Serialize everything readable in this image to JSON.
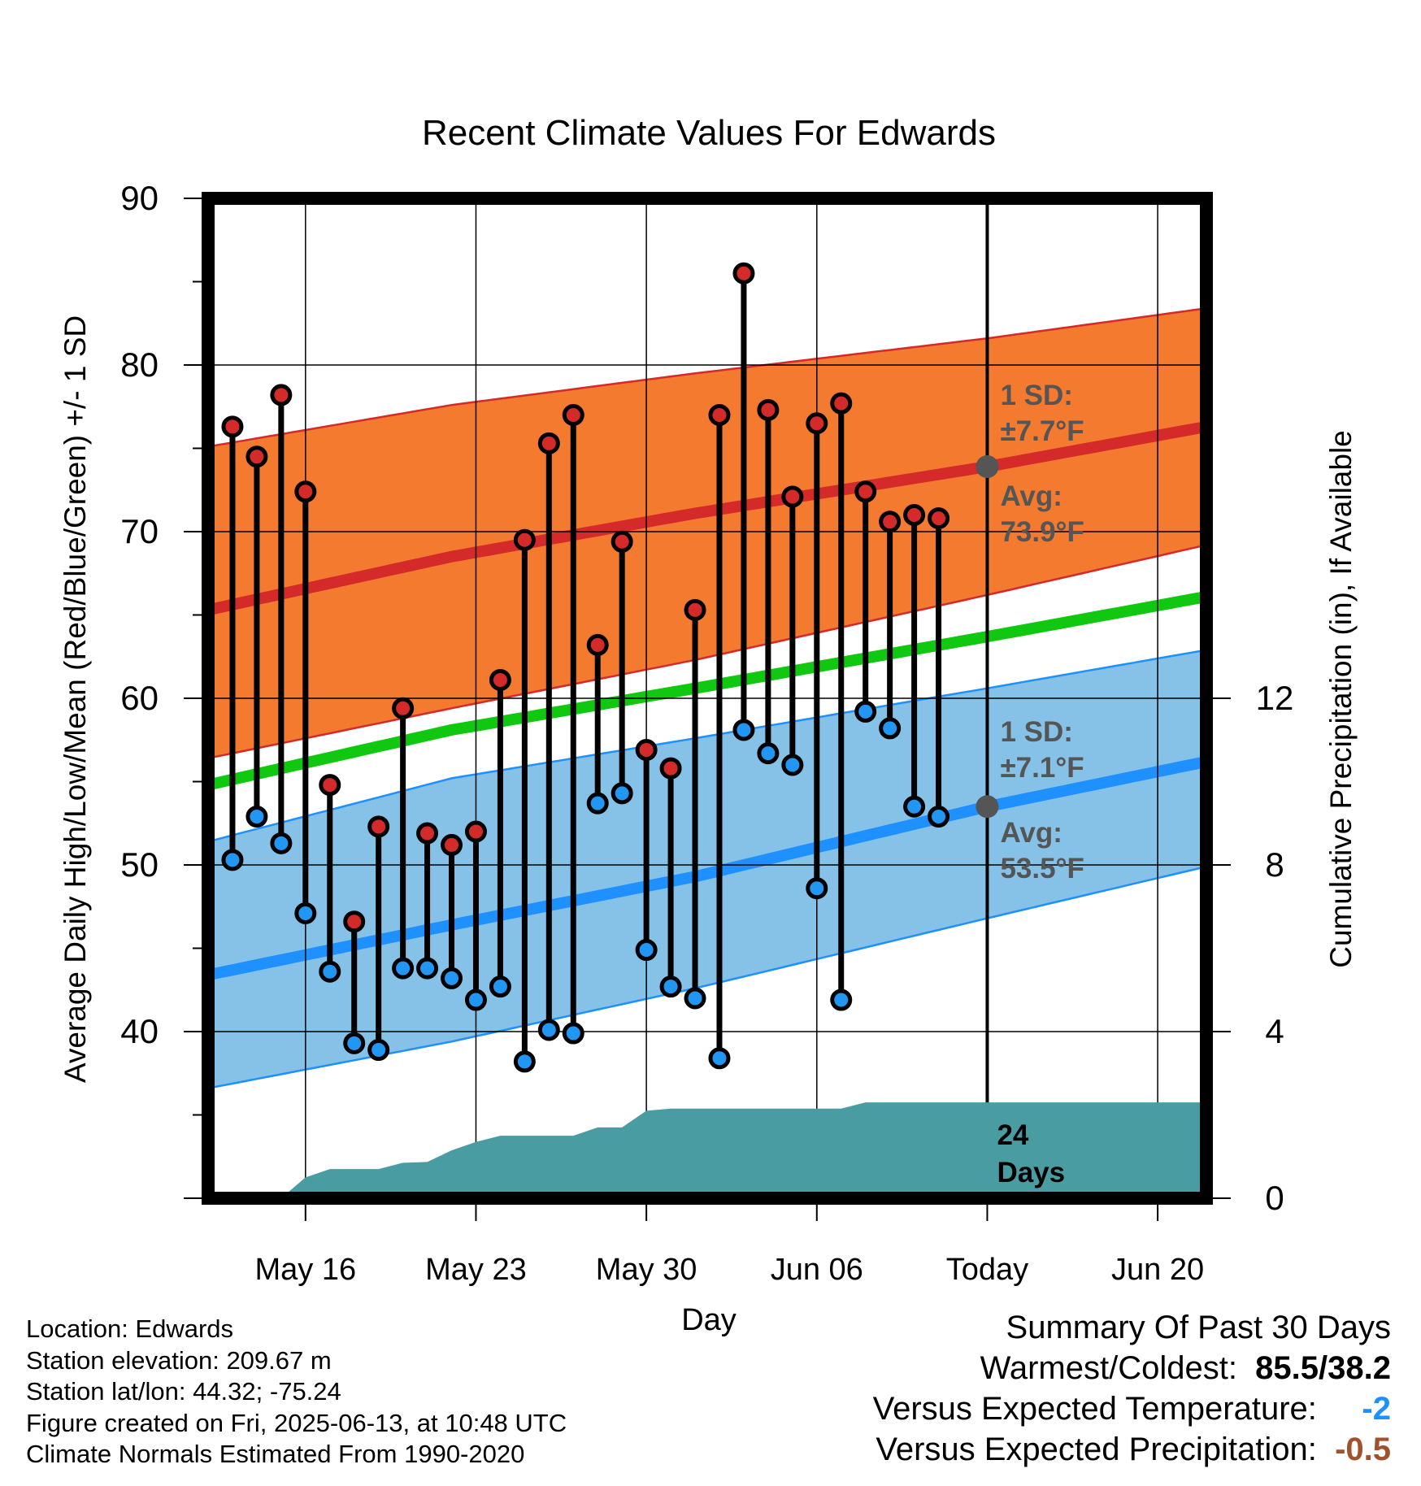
{
  "chart_data": {
    "type": "line",
    "title": "Recent Climate Values For Edwards",
    "xlabel": "Day",
    "ylabel_left": "Average Daily High/Low/Mean (Red/Blue/Green) +/- 1 SD",
    "ylabel_right": "Cumulative Precipitation (in), If Available",
    "ylim_left": [
      30,
      90
    ],
    "ylim_right": [
      0,
      24
    ],
    "yticks_left": [
      40,
      50,
      60,
      70,
      80,
      90
    ],
    "yticks_right": [
      0,
      4,
      8,
      12
    ],
    "x_domain": [
      "2025-05-12",
      "2025-06-22"
    ],
    "xticks": [
      {
        "date": "2025-05-16",
        "label": "May 16"
      },
      {
        "date": "2025-05-23",
        "label": "May 23"
      },
      {
        "date": "2025-05-30",
        "label": "May 30"
      },
      {
        "date": "2025-06-06",
        "label": "Jun 06"
      },
      {
        "date": "2025-06-13",
        "label": "Today"
      },
      {
        "date": "2025-06-20",
        "label": "Jun 20"
      }
    ],
    "today": "2025-06-13",
    "grid": true,
    "daily_obs": [
      {
        "date": "2025-05-13",
        "high": 76.3,
        "low": 50.3
      },
      {
        "date": "2025-05-14",
        "high": 74.5,
        "low": 52.9
      },
      {
        "date": "2025-05-15",
        "high": 78.2,
        "low": 51.3
      },
      {
        "date": "2025-05-16",
        "high": 72.4,
        "low": 47.1
      },
      {
        "date": "2025-05-17",
        "high": 54.8,
        "low": 43.6
      },
      {
        "date": "2025-05-18",
        "high": 46.6,
        "low": 39.3
      },
      {
        "date": "2025-05-19",
        "high": 52.3,
        "low": 38.9
      },
      {
        "date": "2025-05-20",
        "high": 59.4,
        "low": 43.8
      },
      {
        "date": "2025-05-21",
        "high": 51.9,
        "low": 43.8
      },
      {
        "date": "2025-05-22",
        "high": 51.2,
        "low": 43.2
      },
      {
        "date": "2025-05-23",
        "high": 52.0,
        "low": 41.9
      },
      {
        "date": "2025-05-24",
        "high": 61.1,
        "low": 42.7
      },
      {
        "date": "2025-05-25",
        "high": 69.5,
        "low": 38.2
      },
      {
        "date": "2025-05-26",
        "high": 75.3,
        "low": 40.1
      },
      {
        "date": "2025-05-27",
        "high": 77.0,
        "low": 39.9
      },
      {
        "date": "2025-05-28",
        "high": 63.2,
        "low": 53.7
      },
      {
        "date": "2025-05-29",
        "high": 69.4,
        "low": 54.3
      },
      {
        "date": "2025-05-30",
        "high": 56.9,
        "low": 44.9
      },
      {
        "date": "2025-05-31",
        "high": 55.8,
        "low": 42.7
      },
      {
        "date": "2025-06-01",
        "high": 65.3,
        "low": 42.0
      },
      {
        "date": "2025-06-02",
        "high": 77.0,
        "low": 38.4
      },
      {
        "date": "2025-06-03",
        "high": 85.5,
        "low": 58.1
      },
      {
        "date": "2025-06-04",
        "high": 77.3,
        "low": 56.7
      },
      {
        "date": "2025-06-05",
        "high": 72.1,
        "low": 56.0
      },
      {
        "date": "2025-06-06",
        "high": 76.5,
        "low": 48.6
      },
      {
        "date": "2025-06-07",
        "high": 77.7,
        "low": 41.9
      },
      {
        "date": "2025-06-08",
        "high": 72.4,
        "low": 59.2
      },
      {
        "date": "2025-06-09",
        "high": 70.6,
        "low": 58.2
      },
      {
        "date": "2025-06-10",
        "high": 71.0,
        "low": 53.5
      },
      {
        "date": "2025-06-11",
        "high": 70.8,
        "low": 52.9
      }
    ],
    "normals": {
      "dates": [
        "2025-05-12",
        "2025-05-22",
        "2025-06-01",
        "2025-06-13",
        "2025-06-22"
      ],
      "avg_high": [
        65.3,
        68.5,
        71.1,
        73.9,
        76.3
      ],
      "high_upper": [
        75.1,
        77.6,
        79.5,
        81.6,
        83.4
      ],
      "high_lower": [
        56.4,
        59.4,
        62.3,
        66.2,
        69.2
      ],
      "avg_mean": [
        54.8,
        58.1,
        60.6,
        63.7,
        66.1
      ],
      "avg_low": [
        43.4,
        46.4,
        49.3,
        53.5,
        56.2
      ],
      "low_upper": [
        51.4,
        55.2,
        57.6,
        60.6,
        62.9
      ],
      "low_lower": [
        36.6,
        39.4,
        42.6,
        46.8,
        49.9
      ]
    },
    "precip_cumulative": {
      "dates": [
        "2025-05-15",
        "2025-05-16",
        "2025-05-17",
        "2025-05-19",
        "2025-05-20",
        "2025-05-21",
        "2025-05-22",
        "2025-05-23",
        "2025-05-24",
        "2025-05-25",
        "2025-05-27",
        "2025-05-28",
        "2025-05-29",
        "2025-05-30",
        "2025-05-31",
        "2025-06-01",
        "2025-06-07",
        "2025-06-08",
        "2025-06-22"
      ],
      "values": [
        0.0,
        0.5,
        0.7,
        0.7,
        0.85,
        0.87,
        1.15,
        1.35,
        1.5,
        1.5,
        1.5,
        1.7,
        1.7,
        2.1,
        2.15,
        2.15,
        2.15,
        2.3,
        2.3
      ]
    },
    "annotations": {
      "high_sd": "1 SD:\n±7.7°F",
      "high_avg": "Avg:\n73.9°F",
      "low_sd": "1 SD:\n±7.1°F",
      "low_avg": "Avg:\n53.5°F",
      "days": "24\nDays"
    },
    "colors": {
      "high_band": "#f47a2f",
      "high_line": "#d42a2a",
      "mean_line": "#10c810",
      "low_band": "#86c2e8",
      "low_line": "#1e90ff",
      "high_dot": "#d42a2a",
      "low_dot": "#2196f3",
      "precip": "#4a9ca3",
      "annotation": "#555555"
    }
  },
  "info": [
    "Location: Edwards",
    "Station elevation: 209.67 m",
    "Station lat/lon: 44.32; -75.24",
    "Figure created on Fri, 2025-06-13, at 10:48 UTC",
    "Climate Normals Estimated From 1990-2020"
  ],
  "summary": {
    "heading": "Summary Of Past 30 Days",
    "warm_label": "Warmest/Coldest:",
    "warm_value": "85.5/38.2",
    "temp_label": "Versus Expected Temperature:",
    "temp_value": "-2",
    "temp_color": "#1e90ff",
    "precip_label": "Versus Expected Precipitation:",
    "precip_value": "-0.5",
    "precip_color": "#a0522d"
  }
}
